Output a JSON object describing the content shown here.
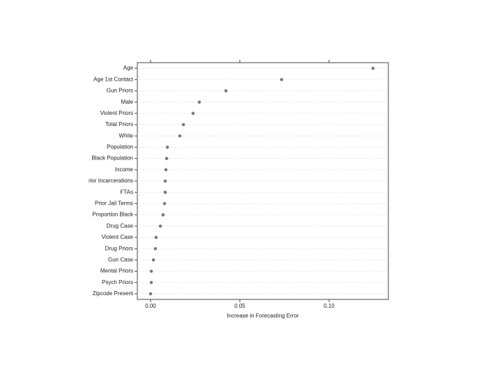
{
  "chart_data": {
    "type": "dot",
    "x_label": "Increase in Forecasting Error",
    "categories": [
      "Age",
      "Age 1st Contact",
      "Gun Priors",
      "Male",
      "Violent Priors",
      "Total Priors",
      "White",
      "Population",
      "Black Population",
      "Income",
      "rior Incarcerations",
      "FTAs",
      "Prior Jail Terms",
      "Proportion Black",
      "Drug Case",
      "Violent Case",
      "Drug Priors",
      "Gun Case",
      "Mental Priors",
      "Psych Priors",
      "Zipcode Present"
    ],
    "values": [
      0.1246,
      0.0734,
      0.0422,
      0.0273,
      0.0238,
      0.0184,
      0.0164,
      0.0094,
      0.009,
      0.0086,
      0.0082,
      0.0082,
      0.0078,
      0.007,
      0.0055,
      0.0031,
      0.0027,
      0.0016,
      0.0004,
      0.0004,
      0.0
    ],
    "color": "#7a7a7a",
    "xlim": [
      -0.0074,
      0.1332
    ],
    "xticks": [
      {
        "value": 0,
        "label": "0.00"
      },
      {
        "value": 0.05,
        "label": "0.05"
      },
      {
        "value": 0.1,
        "label": "0.10"
      }
    ],
    "grid": true
  }
}
